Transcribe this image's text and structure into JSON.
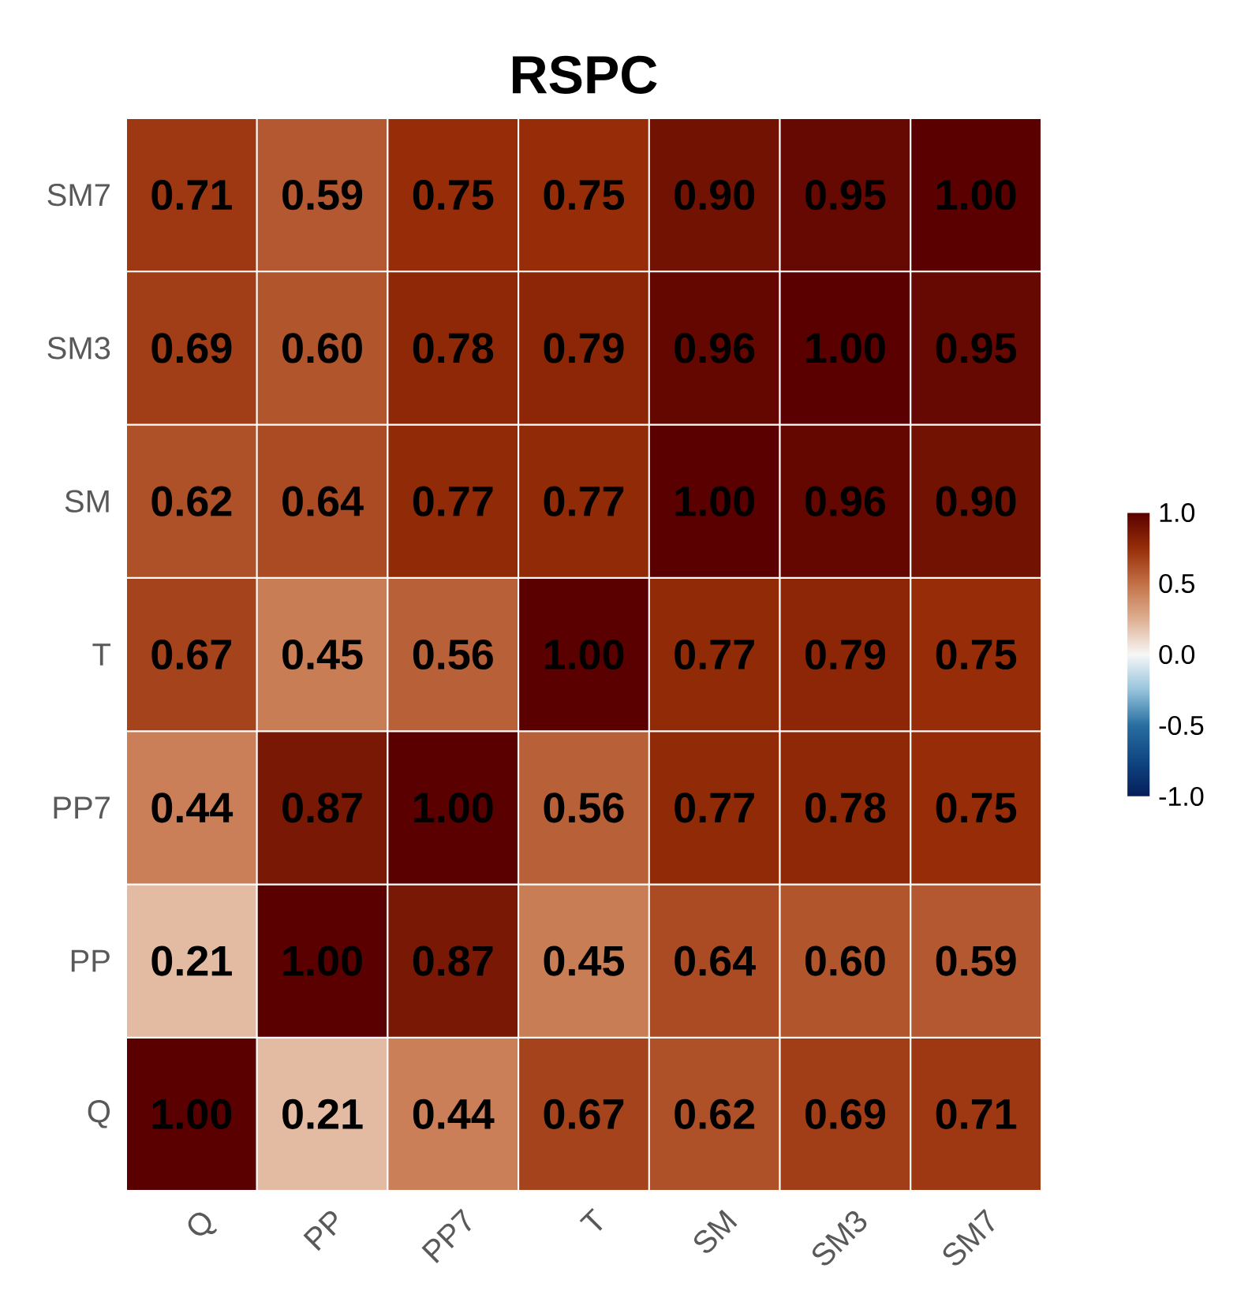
{
  "chart_data": {
    "type": "heatmap",
    "title": "RSPC",
    "categories": [
      "Q",
      "PP",
      "PP7",
      "T",
      "SM",
      "SM3",
      "SM7"
    ],
    "y_categories": [
      "SM7",
      "SM3",
      "SM",
      "T",
      "PP7",
      "PP",
      "Q"
    ],
    "cells": [
      [
        0.71,
        0.59,
        0.75,
        0.75,
        0.9,
        0.95,
        1.0
      ],
      [
        0.69,
        0.6,
        0.78,
        0.79,
        0.96,
        1.0,
        0.95
      ],
      [
        0.62,
        0.64,
        0.77,
        0.77,
        1.0,
        0.96,
        0.9
      ],
      [
        0.67,
        0.45,
        0.56,
        1.0,
        0.77,
        0.79,
        0.75
      ],
      [
        0.44,
        0.87,
        1.0,
        0.56,
        0.77,
        0.78,
        0.75
      ],
      [
        0.21,
        1.0,
        0.87,
        0.45,
        0.64,
        0.6,
        0.59
      ],
      [
        1.0,
        0.21,
        0.44,
        0.67,
        0.62,
        0.69,
        0.71
      ]
    ],
    "cell_labels": [
      [
        "0.71",
        "0.59",
        "0.75",
        "0.75",
        "0.90",
        "0.95",
        "1.00"
      ],
      [
        "0.69",
        "0.60",
        "0.78",
        "0.79",
        "0.96",
        "1.00",
        "0.95"
      ],
      [
        "0.62",
        "0.64",
        "0.77",
        "0.77",
        "1.00",
        "0.96",
        "0.90"
      ],
      [
        "0.67",
        "0.45",
        "0.56",
        "1.00",
        "0.77",
        "0.79",
        "0.75"
      ],
      [
        "0.44",
        "0.87",
        "1.00",
        "0.56",
        "0.77",
        "0.78",
        "0.75"
      ],
      [
        "0.21",
        "1.00",
        "0.87",
        "0.45",
        "0.64",
        "0.60",
        "0.59"
      ],
      [
        "1.00",
        "0.21",
        "0.44",
        "0.67",
        "0.62",
        "0.69",
        "0.71"
      ]
    ],
    "clim": [
      -1,
      1
    ],
    "cticks": [
      {
        "value": -1,
        "label": "-1.0"
      },
      {
        "value": -0.5,
        "label": "-0.5"
      },
      {
        "value": 0,
        "label": "0.0"
      },
      {
        "value": 0.5,
        "label": "0.5"
      },
      {
        "value": 1,
        "label": "1.0"
      }
    ]
  }
}
